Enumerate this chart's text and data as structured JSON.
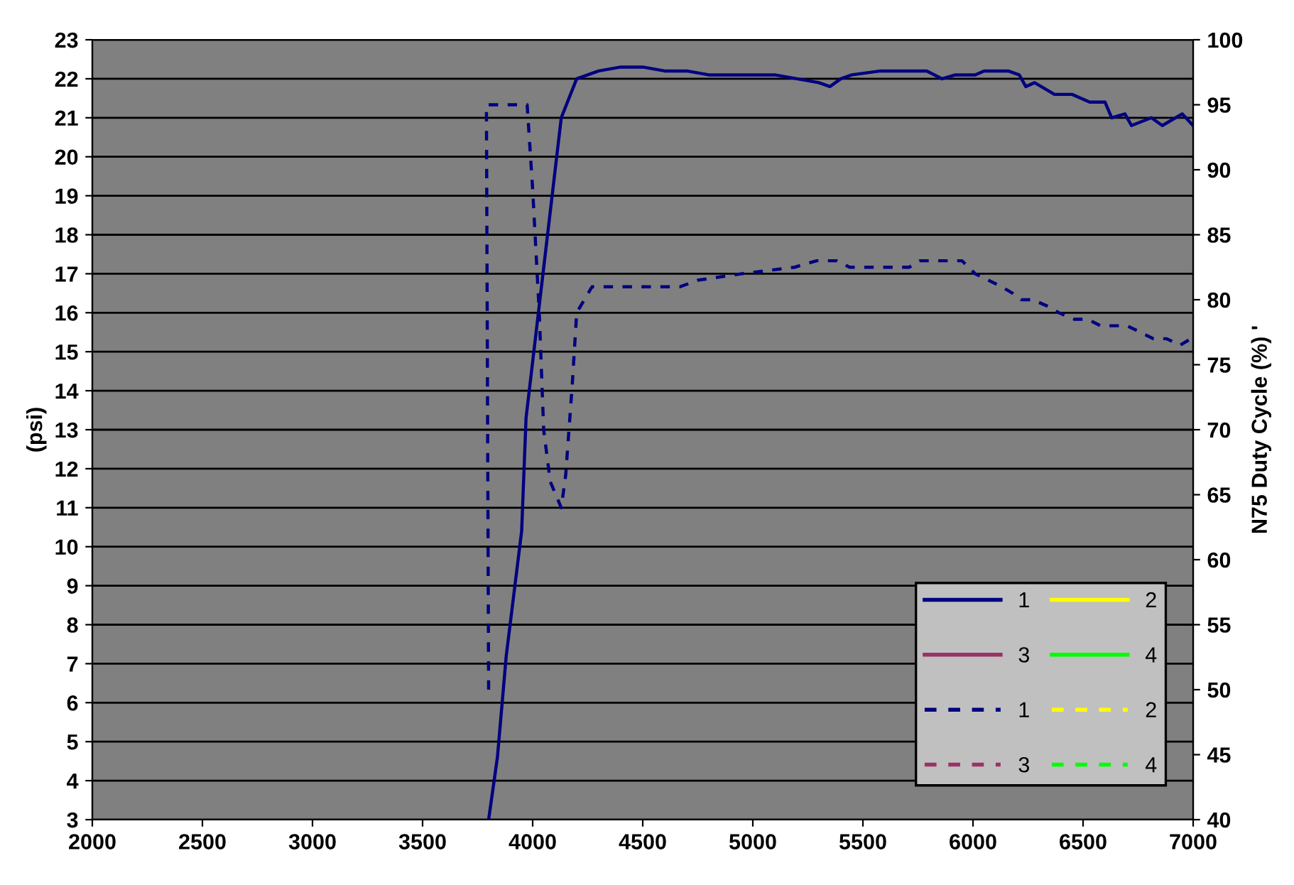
{
  "chart_data": {
    "type": "line",
    "ylabel": "(psi)",
    "y2label": "N75 Duty Cycle (%) '",
    "xlim": [
      2000,
      7000
    ],
    "xticks": [
      2000,
      2500,
      3000,
      3500,
      4000,
      4500,
      5000,
      5500,
      6000,
      6500,
      7000
    ],
    "ylim": [
      3,
      23
    ],
    "yticks": [
      3,
      4,
      5,
      6,
      7,
      8,
      9,
      10,
      11,
      12,
      13,
      14,
      15,
      16,
      17,
      18,
      19,
      20,
      21,
      22,
      23
    ],
    "y2lim": [
      40,
      100
    ],
    "y2ticks": [
      40,
      45,
      50,
      55,
      60,
      65,
      70,
      75,
      80,
      85,
      90,
      95,
      100
    ],
    "grid": "y",
    "legend": "bottom right",
    "series": [
      {
        "name": "1",
        "color": "#000080",
        "line_style": "solid",
        "x": [
          3800,
          3840,
          3880,
          3950,
          3970,
          4130,
          4200,
          4300,
          4400,
          4500,
          4600,
          4700,
          4800,
          4900,
          5000,
          5100,
          5200,
          5300,
          5350,
          5400,
          5450,
          5580,
          5790,
          5860,
          5920,
          6010,
          6050,
          6160,
          6210,
          6240,
          6280,
          6370,
          6450,
          6530,
          6600,
          6630,
          6690,
          6720,
          6810,
          6860,
          6950,
          7000
        ],
        "values": [
          3.0,
          4.6,
          7.2,
          10.4,
          13.3,
          21.0,
          22.0,
          22.2,
          22.3,
          22.3,
          22.2,
          22.2,
          22.1,
          22.1,
          22.1,
          22.1,
          22.0,
          21.9,
          21.8,
          22.0,
          22.1,
          22.2,
          22.2,
          22.0,
          22.1,
          22.1,
          22.2,
          22.2,
          22.1,
          21.8,
          21.9,
          21.6,
          21.6,
          21.4,
          21.4,
          21.0,
          21.1,
          20.8,
          21.0,
          20.8,
          21.1,
          20.8
        ]
      },
      {
        "name": "2",
        "color": "#ffff00",
        "line_style": "solid"
      },
      {
        "name": "3",
        "color": "#993366",
        "line_style": "solid"
      },
      {
        "name": "4",
        "color": "#00ff00",
        "line_style": "solid"
      },
      {
        "name": "1",
        "color": "#000080",
        "line_style": "dashed",
        "axis": "y2",
        "x": [
          3800,
          3790,
          3975,
          4000,
          4030,
          4050,
          4080,
          4130,
          4150,
          4180,
          4200,
          4270,
          4670,
          4750,
          4950,
          5190,
          5290,
          5380,
          5440,
          5710,
          5760,
          5820,
          5890,
          5950,
          6010,
          6070,
          6130,
          6180,
          6220,
          6270,
          6340,
          6390,
          6460,
          6520,
          6580,
          6640,
          6700,
          6760,
          6820,
          6880,
          6940,
          6990
        ],
        "values": [
          50,
          95,
          95,
          88.5,
          79,
          70,
          66,
          64,
          66.5,
          73.5,
          79,
          81,
          81,
          81.5,
          82,
          82.5,
          83,
          83,
          82.5,
          82.5,
          83,
          83,
          83,
          83,
          82,
          81.5,
          81,
          80.5,
          80,
          80,
          79.5,
          79,
          78.5,
          78.5,
          78,
          78,
          78,
          77.5,
          77,
          77,
          76.5,
          77
        ]
      },
      {
        "name": "2",
        "color": "#ffff00",
        "line_style": "dashed",
        "axis": "y2"
      },
      {
        "name": "3",
        "color": "#993366",
        "line_style": "dashed",
        "axis": "y2"
      },
      {
        "name": "4",
        "color": "#00ff00",
        "line_style": "dashed",
        "axis": "y2"
      }
    ]
  }
}
